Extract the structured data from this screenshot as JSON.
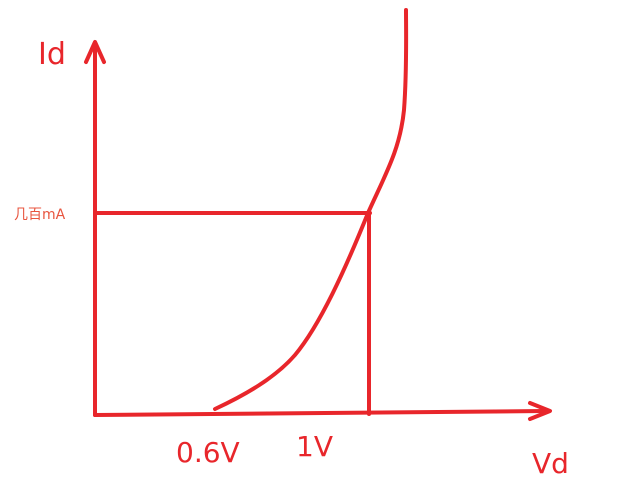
{
  "axes": {
    "y_label": "Id",
    "x_label": "Vd"
  },
  "annotations": {
    "current_level": "几百mA",
    "threshold_voltage": "0.6V",
    "operating_voltage": "1V"
  }
}
